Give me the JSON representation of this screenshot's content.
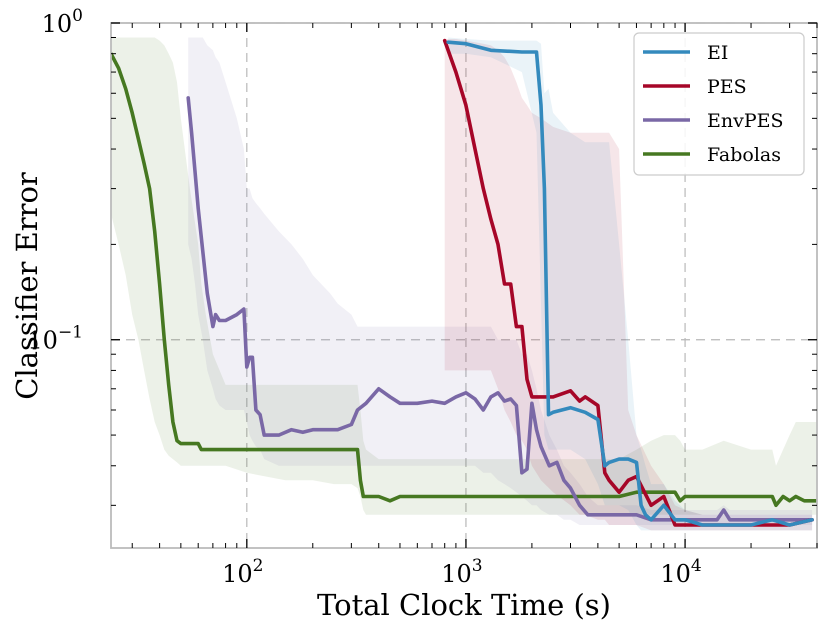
{
  "chart_data": {
    "type": "line",
    "title": "",
    "xlabel": "Total Clock Time (s)",
    "ylabel": "Classifier Error",
    "xscale": "log",
    "yscale": "log",
    "xlim": [
      24,
      40000
    ],
    "ylim": [
      0.022,
      1.0
    ],
    "grid": true,
    "legend_position": "top-right",
    "x_ticks": [
      {
        "value": 100,
        "base": "10",
        "exp": "2"
      },
      {
        "value": 1000,
        "base": "10",
        "exp": "3"
      },
      {
        "value": 10000,
        "base": "10",
        "exp": "4"
      }
    ],
    "y_ticks": [
      {
        "value": 1.0,
        "base": "10",
        "exp": "0"
      },
      {
        "value": 0.1,
        "base": "10",
        "exp": "−1"
      }
    ],
    "series": [
      {
        "name": "EI",
        "color": "#348abd",
        "x": [
          830,
          1000,
          1300,
          1800,
          2100,
          2200,
          2280,
          2380,
          2500,
          3000,
          3500,
          4000,
          4300,
          4500,
          5000,
          5500,
          6000,
          6300,
          6600,
          7000,
          8000,
          9000,
          10000,
          12000,
          15000,
          20000,
          25000,
          30000,
          38000
        ],
        "y": [
          0.87,
          0.86,
          0.82,
          0.81,
          0.81,
          0.55,
          0.3,
          0.058,
          0.059,
          0.061,
          0.059,
          0.056,
          0.04,
          0.041,
          0.042,
          0.042,
          0.041,
          0.03,
          0.028,
          0.027,
          0.03,
          0.027,
          0.027,
          0.026,
          0.026,
          0.026,
          0.027,
          0.026,
          0.027
        ],
        "band_low": [
          0.8,
          0.8,
          0.78,
          0.7,
          0.45,
          0.13,
          0.05,
          0.045,
          0.045,
          0.045,
          0.042,
          0.035,
          0.03,
          0.03,
          0.03,
          0.029,
          0.026,
          0.025,
          0.025,
          0.025,
          0.025,
          0.025,
          0.025,
          0.025,
          0.025,
          0.025,
          0.025,
          0.025,
          0.025
        ],
        "band_high": [
          0.9,
          0.89,
          0.88,
          0.88,
          0.88,
          0.86,
          0.6,
          0.62,
          0.52,
          0.45,
          0.42,
          0.42,
          0.42,
          0.42,
          0.2,
          0.1,
          0.05,
          0.045,
          0.04,
          0.035,
          0.035,
          0.031,
          0.029,
          0.028,
          0.028,
          0.028,
          0.028,
          0.028,
          0.028
        ]
      },
      {
        "name": "PES",
        "color": "#a60628",
        "x": [
          800,
          900,
          1000,
          1100,
          1200,
          1300,
          1400,
          1500,
          1600,
          1700,
          1800,
          1900,
          2000,
          2200,
          2500,
          3000,
          3300,
          3500,
          4000,
          4300,
          4500,
          5000,
          5500,
          6000,
          7000,
          8000,
          9000,
          10000,
          12000,
          15000,
          20000,
          25000,
          30000,
          38000
        ],
        "y": [
          0.88,
          0.7,
          0.55,
          0.4,
          0.3,
          0.24,
          0.2,
          0.15,
          0.15,
          0.11,
          0.11,
          0.075,
          0.066,
          0.066,
          0.066,
          0.069,
          0.064,
          0.066,
          0.062,
          0.038,
          0.036,
          0.033,
          0.036,
          0.037,
          0.03,
          0.032,
          0.026,
          0.026,
          0.026,
          0.026,
          0.026,
          0.026,
          0.026,
          0.027
        ],
        "band_low": [
          0.08,
          0.08,
          0.08,
          0.08,
          0.08,
          0.08,
          0.07,
          0.06,
          0.055,
          0.05,
          0.048,
          0.045,
          0.04,
          0.036,
          0.033,
          0.03,
          0.028,
          0.028,
          0.027,
          0.027,
          0.026,
          0.026,
          0.026,
          0.026,
          0.025,
          0.025,
          0.025,
          0.025,
          0.025,
          0.025,
          0.025,
          0.025,
          0.025,
          0.025
        ],
        "band_high": [
          0.89,
          0.89,
          0.88,
          0.87,
          0.86,
          0.85,
          0.82,
          0.78,
          0.72,
          0.65,
          0.58,
          0.55,
          0.52,
          0.5,
          0.47,
          0.45,
          0.45,
          0.45,
          0.45,
          0.45,
          0.45,
          0.4,
          0.06,
          0.05,
          0.04,
          0.035,
          0.03,
          0.029,
          0.028,
          0.028,
          0.028,
          0.028,
          0.028,
          0.028
        ]
      },
      {
        "name": "EnvPES",
        "color": "#7a68a6",
        "x": [
          54,
          56,
          58,
          60,
          63,
          66,
          70,
          72,
          75,
          80,
          90,
          97,
          100,
          103,
          106,
          110,
          115,
          120,
          140,
          160,
          180,
          200,
          240,
          260,
          300,
          320,
          350,
          400,
          450,
          500,
          600,
          700,
          800,
          900,
          1000,
          1100,
          1200,
          1300,
          1400,
          1500,
          1600,
          1700,
          1800,
          1900,
          2000,
          2100,
          2200,
          2400,
          2600,
          2800,
          3000,
          3300,
          3600,
          4000,
          4300,
          5000,
          6000,
          7000,
          8000,
          9000,
          10000,
          12000,
          14000,
          15000,
          16000,
          20000,
          25000,
          30000,
          38000
        ],
        "y": [
          0.58,
          0.45,
          0.34,
          0.26,
          0.19,
          0.14,
          0.11,
          0.12,
          0.115,
          0.115,
          0.12,
          0.125,
          0.082,
          0.088,
          0.088,
          0.06,
          0.058,
          0.05,
          0.05,
          0.052,
          0.051,
          0.052,
          0.052,
          0.052,
          0.054,
          0.06,
          0.063,
          0.07,
          0.066,
          0.063,
          0.063,
          0.064,
          0.063,
          0.066,
          0.068,
          0.065,
          0.06,
          0.066,
          0.068,
          0.064,
          0.065,
          0.062,
          0.038,
          0.039,
          0.063,
          0.052,
          0.046,
          0.04,
          0.041,
          0.036,
          0.034,
          0.03,
          0.028,
          0.028,
          0.028,
          0.028,
          0.028,
          0.027,
          0.027,
          0.027,
          0.027,
          0.027,
          0.027,
          0.029,
          0.027,
          0.027,
          0.027,
          0.027,
          0.027
        ],
        "band_low": [
          0.2,
          0.18,
          0.15,
          0.12,
          0.1,
          0.08,
          0.07,
          0.065,
          0.062,
          0.06,
          0.06,
          0.06,
          0.055,
          0.05,
          0.048,
          0.046,
          0.045,
          0.042,
          0.04,
          0.04,
          0.04,
          0.04,
          0.04,
          0.04,
          0.04,
          0.04,
          0.04,
          0.04,
          0.04,
          0.04,
          0.04,
          0.04,
          0.04,
          0.04,
          0.04,
          0.04,
          0.038,
          0.038,
          0.036,
          0.035,
          0.034,
          0.033,
          0.032,
          0.031,
          0.03,
          0.03,
          0.029,
          0.028,
          0.028,
          0.027,
          0.027,
          0.026,
          0.026,
          0.026,
          0.026,
          0.026,
          0.026,
          0.026,
          0.026,
          0.026,
          0.026,
          0.026,
          0.026,
          0.026,
          0.026,
          0.026,
          0.026,
          0.026,
          0.026
        ],
        "band_high": [
          0.9,
          0.9,
          0.9,
          0.9,
          0.9,
          0.85,
          0.82,
          0.78,
          0.75,
          0.65,
          0.5,
          0.4,
          0.3,
          0.3,
          0.28,
          0.27,
          0.26,
          0.25,
          0.22,
          0.2,
          0.18,
          0.16,
          0.14,
          0.13,
          0.12,
          0.11,
          0.11,
          0.11,
          0.11,
          0.11,
          0.11,
          0.11,
          0.11,
          0.11,
          0.11,
          0.11,
          0.11,
          0.11,
          0.1,
          0.1,
          0.1,
          0.1,
          0.09,
          0.09,
          0.08,
          0.07,
          0.06,
          0.05,
          0.045,
          0.04,
          0.038,
          0.035,
          0.032,
          0.03,
          0.03,
          0.03,
          0.03,
          0.029,
          0.029,
          0.029,
          0.029,
          0.029,
          0.029,
          0.03,
          0.029,
          0.029,
          0.029,
          0.029,
          0.029
        ]
      },
      {
        "name": "Fabolas",
        "color": "#467821",
        "x": [
          24,
          26,
          28,
          30,
          32,
          34,
          36,
          38,
          40,
          42,
          44,
          46,
          48,
          50,
          55,
          60,
          62,
          65,
          70,
          80,
          100,
          150,
          200,
          250,
          300,
          320,
          330,
          340,
          350,
          400,
          450,
          500,
          600,
          800,
          1000,
          2000,
          3000,
          4000,
          5000,
          6000,
          7000,
          8000,
          9000,
          9500,
          10000,
          12000,
          15000,
          20000,
          25000,
          26000,
          28000,
          30000,
          32000,
          35000,
          38000,
          40000
        ],
        "y": [
          0.8,
          0.72,
          0.62,
          0.52,
          0.43,
          0.36,
          0.3,
          0.22,
          0.15,
          0.1,
          0.072,
          0.055,
          0.048,
          0.047,
          0.047,
          0.047,
          0.045,
          0.045,
          0.045,
          0.045,
          0.045,
          0.045,
          0.045,
          0.045,
          0.045,
          0.045,
          0.036,
          0.032,
          0.032,
          0.032,
          0.031,
          0.032,
          0.032,
          0.032,
          0.032,
          0.032,
          0.032,
          0.032,
          0.032,
          0.033,
          0.033,
          0.033,
          0.033,
          0.031,
          0.032,
          0.032,
          0.032,
          0.032,
          0.032,
          0.03,
          0.032,
          0.031,
          0.032,
          0.031,
          0.031,
          0.031
        ],
        "band_low": [
          0.25,
          0.2,
          0.16,
          0.12,
          0.1,
          0.08,
          0.065,
          0.055,
          0.05,
          0.045,
          0.043,
          0.042,
          0.041,
          0.04,
          0.04,
          0.04,
          0.04,
          0.04,
          0.04,
          0.04,
          0.038,
          0.036,
          0.036,
          0.035,
          0.035,
          0.034,
          0.032,
          0.029,
          0.028,
          0.028,
          0.028,
          0.028,
          0.028,
          0.028,
          0.028,
          0.028,
          0.028,
          0.028,
          0.028,
          0.028,
          0.028,
          0.028,
          0.028,
          0.028,
          0.028,
          0.028,
          0.028,
          0.028,
          0.028,
          0.028,
          0.028,
          0.028,
          0.028,
          0.028,
          0.028,
          0.028
        ],
        "band_high": [
          0.9,
          0.9,
          0.9,
          0.9,
          0.9,
          0.9,
          0.9,
          0.9,
          0.88,
          0.85,
          0.8,
          0.75,
          0.65,
          0.5,
          0.3,
          0.2,
          0.15,
          0.12,
          0.09,
          0.072,
          0.072,
          0.072,
          0.072,
          0.072,
          0.072,
          0.072,
          0.06,
          0.048,
          0.045,
          0.042,
          0.042,
          0.042,
          0.042,
          0.042,
          0.042,
          0.042,
          0.042,
          0.042,
          0.042,
          0.045,
          0.048,
          0.05,
          0.05,
          0.048,
          0.045,
          0.045,
          0.048,
          0.045,
          0.045,
          0.04,
          0.045,
          0.05,
          0.055,
          0.055,
          0.055,
          0.055
        ]
      }
    ]
  }
}
